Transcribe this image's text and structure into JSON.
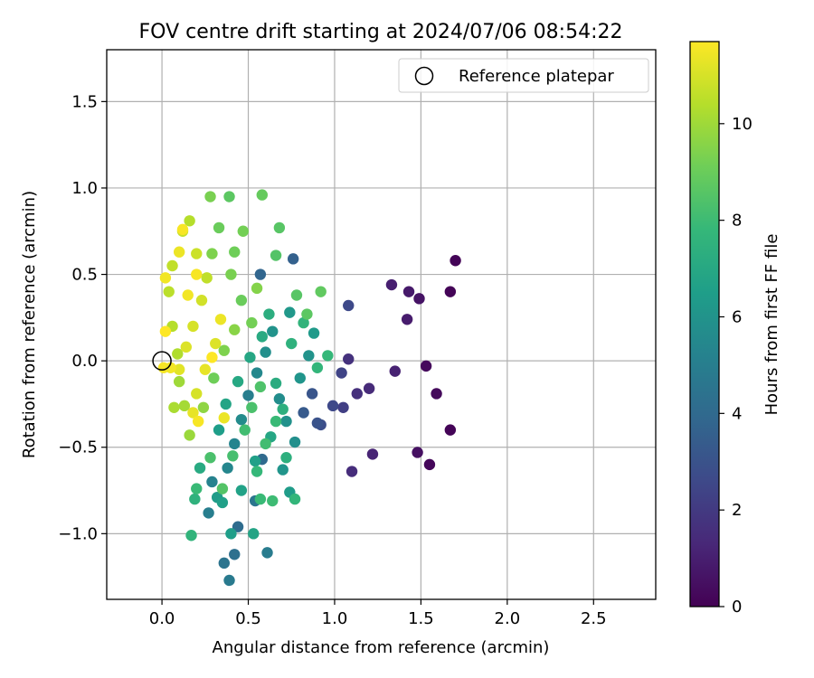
{
  "chart_data": {
    "type": "scatter",
    "title": "FOV centre drift starting at 2024/07/06 08:54:22",
    "xlabel": "Angular distance from reference (arcmin)",
    "ylabel": "Rotation from reference (arcmin)",
    "xlim": [
      -0.32,
      2.86
    ],
    "ylim": [
      -1.38,
      1.8
    ],
    "xticks": [
      0.0,
      0.5,
      1.0,
      1.5,
      2.0,
      2.5
    ],
    "xtick_labels": [
      "0.0",
      "0.5",
      "1.0",
      "1.5",
      "2.0",
      "2.5"
    ],
    "yticks": [
      -1.0,
      -0.5,
      0.0,
      0.5,
      1.0,
      1.5
    ],
    "ytick_labels": [
      "−1.0",
      "−0.5",
      "0.0",
      "0.5",
      "1.0",
      "1.5"
    ],
    "grid": true,
    "legend": {
      "position": "top-right",
      "entries": [
        {
          "label": "Reference platepar",
          "marker": "open-circle"
        }
      ]
    },
    "reference_point": {
      "x": 0.0,
      "y": 0.0
    },
    "colorbar": {
      "label": "Hours from first FF file",
      "min": 0,
      "max": 11.7,
      "ticks": [
        0,
        2,
        4,
        6,
        8,
        10
      ],
      "tick_labels": [
        "0",
        "2",
        "4",
        "6",
        "8",
        "10"
      ],
      "colormap": "viridis"
    },
    "points": [
      {
        "x": 1.7,
        "y": 0.58,
        "h": 0.1
      },
      {
        "x": 1.67,
        "y": 0.4,
        "h": 0.1
      },
      {
        "x": 1.67,
        "y": -0.4,
        "h": 0.1
      },
      {
        "x": 1.55,
        "y": -0.6,
        "h": 0.2
      },
      {
        "x": 1.59,
        "y": -0.19,
        "h": 0.3
      },
      {
        "x": 1.53,
        "y": -0.03,
        "h": 0.3
      },
      {
        "x": 1.48,
        "y": -0.53,
        "h": 0.5
      },
      {
        "x": 1.49,
        "y": 0.36,
        "h": 0.6
      },
      {
        "x": 1.43,
        "y": 0.4,
        "h": 0.8
      },
      {
        "x": 1.42,
        "y": 0.24,
        "h": 0.9
      },
      {
        "x": 1.33,
        "y": 0.44,
        "h": 1.0
      },
      {
        "x": 1.35,
        "y": -0.06,
        "h": 1.1
      },
      {
        "x": 1.22,
        "y": -0.54,
        "h": 1.2
      },
      {
        "x": 1.2,
        "y": -0.16,
        "h": 1.4
      },
      {
        "x": 1.13,
        "y": -0.19,
        "h": 1.6
      },
      {
        "x": 1.1,
        "y": -0.64,
        "h": 1.5
      },
      {
        "x": 1.08,
        "y": 0.01,
        "h": 1.7
      },
      {
        "x": 1.08,
        "y": 0.32,
        "h": 2.6
      },
      {
        "x": 1.05,
        "y": -0.27,
        "h": 2.2
      },
      {
        "x": 1.04,
        "y": -0.07,
        "h": 2.4
      },
      {
        "x": 0.99,
        "y": -0.26,
        "h": 2.6
      },
      {
        "x": 0.92,
        "y": -0.37,
        "h": 2.8
      },
      {
        "x": 0.9,
        "y": -0.36,
        "h": 3.0
      },
      {
        "x": 0.87,
        "y": -0.19,
        "h": 3.1
      },
      {
        "x": 0.82,
        "y": -0.3,
        "h": 3.3
      },
      {
        "x": 0.76,
        "y": 0.59,
        "h": 3.6
      },
      {
        "x": 0.57,
        "y": 0.5,
        "h": 3.8
      },
      {
        "x": 0.58,
        "y": -0.57,
        "h": 4.0
      },
      {
        "x": 0.44,
        "y": -0.96,
        "h": 4.1
      },
      {
        "x": 0.42,
        "y": -1.12,
        "h": 4.3
      },
      {
        "x": 0.36,
        "y": -1.17,
        "h": 4.5
      },
      {
        "x": 0.39,
        "y": -1.27,
        "h": 4.8
      },
      {
        "x": 0.54,
        "y": -0.81,
        "h": 4.6
      },
      {
        "x": 0.61,
        "y": -1.11,
        "h": 4.9
      },
      {
        "x": 0.27,
        "y": -0.88,
        "h": 5.0
      },
      {
        "x": 0.29,
        "y": -0.7,
        "h": 5.2
      },
      {
        "x": 0.38,
        "y": -0.62,
        "h": 5.4
      },
      {
        "x": 0.42,
        "y": -0.48,
        "h": 5.3
      },
      {
        "x": 0.46,
        "y": -0.34,
        "h": 5.6
      },
      {
        "x": 0.5,
        "y": -0.2,
        "h": 5.0
      },
      {
        "x": 0.55,
        "y": -0.07,
        "h": 5.5
      },
      {
        "x": 0.6,
        "y": 0.05,
        "h": 5.8
      },
      {
        "x": 0.64,
        "y": 0.17,
        "h": 6.0
      },
      {
        "x": 0.68,
        "y": -0.22,
        "h": 5.7
      },
      {
        "x": 0.72,
        "y": -0.35,
        "h": 5.9
      },
      {
        "x": 0.77,
        "y": -0.47,
        "h": 5.8
      },
      {
        "x": 0.8,
        "y": -0.1,
        "h": 6.1
      },
      {
        "x": 0.85,
        "y": 0.03,
        "h": 6.0
      },
      {
        "x": 0.88,
        "y": 0.16,
        "h": 6.3
      },
      {
        "x": 0.74,
        "y": 0.28,
        "h": 6.2
      },
      {
        "x": 0.7,
        "y": -0.63,
        "h": 6.1
      },
      {
        "x": 0.74,
        "y": -0.76,
        "h": 6.4
      },
      {
        "x": 0.32,
        "y": -0.79,
        "h": 6.4
      },
      {
        "x": 0.35,
        "y": -0.82,
        "h": 6.6
      },
      {
        "x": 0.4,
        "y": -1.0,
        "h": 6.5
      },
      {
        "x": 0.53,
        "y": -1.0,
        "h": 6.8
      },
      {
        "x": 0.46,
        "y": -0.75,
        "h": 6.7
      },
      {
        "x": 0.54,
        "y": -0.58,
        "h": 6.6
      },
      {
        "x": 0.63,
        "y": -0.44,
        "h": 6.9
      },
      {
        "x": 0.33,
        "y": -0.4,
        "h": 6.5
      },
      {
        "x": 0.37,
        "y": -0.25,
        "h": 6.8
      },
      {
        "x": 0.44,
        "y": -0.12,
        "h": 7.0
      },
      {
        "x": 0.51,
        "y": 0.02,
        "h": 6.9
      },
      {
        "x": 0.58,
        "y": 0.14,
        "h": 7.1
      },
      {
        "x": 0.62,
        "y": 0.27,
        "h": 7.3
      },
      {
        "x": 0.66,
        "y": -0.13,
        "h": 7.2
      },
      {
        "x": 0.7,
        "y": -0.28,
        "h": 7.4
      },
      {
        "x": 0.75,
        "y": 0.1,
        "h": 7.5
      },
      {
        "x": 0.82,
        "y": 0.22,
        "h": 7.6
      },
      {
        "x": 0.9,
        "y": -0.04,
        "h": 7.7
      },
      {
        "x": 0.96,
        "y": 0.03,
        "h": 7.8
      },
      {
        "x": 0.72,
        "y": -0.56,
        "h": 7.4
      },
      {
        "x": 0.77,
        "y": -0.8,
        "h": 7.7
      },
      {
        "x": 0.57,
        "y": -0.8,
        "h": 7.9
      },
      {
        "x": 0.64,
        "y": -0.81,
        "h": 8.0
      },
      {
        "x": 0.55,
        "y": -0.64,
        "h": 7.8
      },
      {
        "x": 0.6,
        "y": -0.48,
        "h": 8.1
      },
      {
        "x": 0.66,
        "y": -0.35,
        "h": 7.9
      },
      {
        "x": 0.22,
        "y": -0.62,
        "h": 7.1
      },
      {
        "x": 0.19,
        "y": -0.8,
        "h": 7.5
      },
      {
        "x": 0.17,
        "y": -1.01,
        "h": 7.6
      },
      {
        "x": 0.2,
        "y": -0.74,
        "h": 7.9
      },
      {
        "x": 0.28,
        "y": -0.56,
        "h": 8.3
      },
      {
        "x": 0.35,
        "y": -0.74,
        "h": 8.5
      },
      {
        "x": 0.41,
        "y": -0.55,
        "h": 8.2
      },
      {
        "x": 0.48,
        "y": -0.4,
        "h": 8.1
      },
      {
        "x": 0.52,
        "y": -0.27,
        "h": 8.3
      },
      {
        "x": 0.57,
        "y": -0.15,
        "h": 8.4
      },
      {
        "x": 0.66,
        "y": 0.61,
        "h": 8.5
      },
      {
        "x": 0.68,
        "y": 0.77,
        "h": 8.6
      },
      {
        "x": 0.78,
        "y": 0.38,
        "h": 8.6
      },
      {
        "x": 0.84,
        "y": 0.27,
        "h": 8.7
      },
      {
        "x": 0.92,
        "y": 0.4,
        "h": 8.8
      },
      {
        "x": 0.58,
        "y": 0.96,
        "h": 8.9
      },
      {
        "x": 0.39,
        "y": 0.95,
        "h": 8.7
      },
      {
        "x": 0.28,
        "y": 0.95,
        "h": 9.3
      },
      {
        "x": 0.33,
        "y": 0.77,
        "h": 9.0
      },
      {
        "x": 0.47,
        "y": 0.75,
        "h": 9.2
      },
      {
        "x": 0.42,
        "y": 0.63,
        "h": 9.1
      },
      {
        "x": 0.29,
        "y": 0.62,
        "h": 9.4
      },
      {
        "x": 0.4,
        "y": 0.5,
        "h": 9.3
      },
      {
        "x": 0.46,
        "y": 0.35,
        "h": 9.0
      },
      {
        "x": 0.52,
        "y": 0.22,
        "h": 9.2
      },
      {
        "x": 0.55,
        "y": 0.42,
        "h": 9.5
      },
      {
        "x": 0.3,
        "y": -0.1,
        "h": 9.1
      },
      {
        "x": 0.36,
        "y": 0.06,
        "h": 9.4
      },
      {
        "x": 0.42,
        "y": 0.18,
        "h": 9.6
      },
      {
        "x": 0.24,
        "y": -0.27,
        "h": 9.7
      },
      {
        "x": 0.16,
        "y": -0.43,
        "h": 9.9
      },
      {
        "x": 0.13,
        "y": -0.26,
        "h": 10.1
      },
      {
        "x": 0.1,
        "y": -0.12,
        "h": 10.0
      },
      {
        "x": 0.07,
        "y": -0.27,
        "h": 10.2
      },
      {
        "x": 0.09,
        "y": 0.04,
        "h": 10.3
      },
      {
        "x": 0.06,
        "y": 0.2,
        "h": 10.4
      },
      {
        "x": 0.04,
        "y": 0.4,
        "h": 10.5
      },
      {
        "x": 0.06,
        "y": 0.55,
        "h": 10.6
      },
      {
        "x": 0.16,
        "y": 0.81,
        "h": 10.4
      },
      {
        "x": 0.12,
        "y": 0.75,
        "h": 10.7
      },
      {
        "x": 0.2,
        "y": 0.62,
        "h": 10.8
      },
      {
        "x": 0.26,
        "y": 0.48,
        "h": 10.6
      },
      {
        "x": 0.23,
        "y": 0.35,
        "h": 10.9
      },
      {
        "x": 0.18,
        "y": 0.2,
        "h": 11.0
      },
      {
        "x": 0.14,
        "y": 0.08,
        "h": 11.1
      },
      {
        "x": 0.1,
        "y": -0.05,
        "h": 11.2
      },
      {
        "x": 0.2,
        "y": -0.19,
        "h": 11.0
      },
      {
        "x": 0.25,
        "y": -0.05,
        "h": 11.3
      },
      {
        "x": 0.31,
        "y": 0.1,
        "h": 11.1
      },
      {
        "x": 0.34,
        "y": 0.24,
        "h": 11.4
      },
      {
        "x": 0.02,
        "y": 0.48,
        "h": 11.5
      },
      {
        "x": 0.1,
        "y": 0.63,
        "h": 11.4
      },
      {
        "x": 0.12,
        "y": 0.76,
        "h": 11.6
      },
      {
        "x": 0.2,
        "y": 0.5,
        "h": 11.6
      },
      {
        "x": 0.15,
        "y": 0.38,
        "h": 11.5
      },
      {
        "x": 0.02,
        "y": 0.17,
        "h": 11.7
      },
      {
        "x": 0.01,
        "y": -0.04,
        "h": 11.6
      },
      {
        "x": 0.05,
        "y": -0.04,
        "h": 11.5
      },
      {
        "x": 0.18,
        "y": -0.3,
        "h": 11.3
      },
      {
        "x": 0.21,
        "y": -0.35,
        "h": 11.6
      },
      {
        "x": 0.36,
        "y": -0.33,
        "h": 11.4
      },
      {
        "x": 0.29,
        "y": 0.02,
        "h": 11.7
      }
    ]
  }
}
